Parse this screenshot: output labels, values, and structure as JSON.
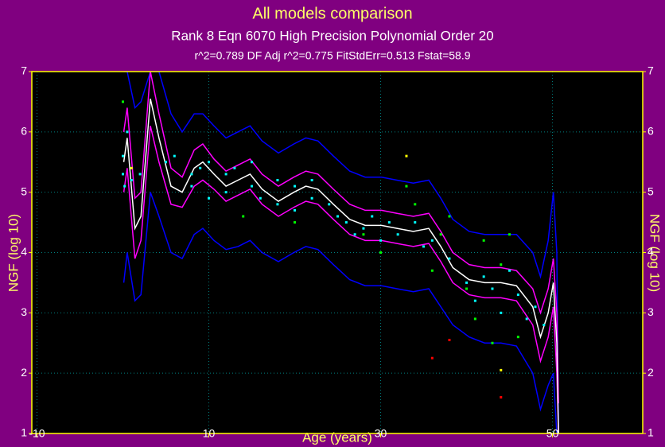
{
  "chart_data": {
    "type": "scatter",
    "title": "All models comparison",
    "subtitle": "Rank 8  Eqn 6070  High Precision Polynomial Order 20",
    "stats": "r^2=0.789  DF Adj r^2=0.775  FitStdErr=0.513  Fstat=58.9",
    "x_label": "Age (years)",
    "y_label": "NGF (log 10)",
    "xlim": [
      -10.6,
      60.5
    ],
    "xticks": [
      -10,
      10,
      30,
      50
    ],
    "ylim": [
      1,
      7
    ],
    "yticks": [
      1,
      2,
      3,
      4,
      5,
      6,
      7
    ],
    "grid": true,
    "series": [
      {
        "style": "line",
        "color": "#0000ff",
        "x": [
          0.1,
          0.5,
          1.4,
          2.1,
          3.2,
          4.2,
          5.6,
          6.9,
          8.3,
          9.3,
          10.6,
          12,
          13.4,
          14.8,
          16.2,
          18.1,
          19.9,
          21.3,
          22.7,
          24.5,
          26.4,
          28.2,
          30.1,
          31.9,
          33.8,
          35.6,
          37,
          38.4,
          40.3,
          42.1,
          44,
          45.8,
          47.7,
          48.6,
          49.5,
          50.1,
          50.5,
          50.7
        ],
        "values": [
          7.0,
          7.0,
          6.4,
          6.5,
          7.0,
          7.0,
          6.3,
          6.0,
          6.3,
          6.3,
          6.1,
          5.9,
          6.0,
          6.1,
          5.85,
          5.65,
          5.8,
          5.9,
          5.85,
          5.6,
          5.35,
          5.25,
          5.25,
          5.2,
          5.15,
          5.2,
          4.9,
          4.55,
          4.35,
          4.3,
          4.3,
          4.3,
          4.0,
          3.6,
          4.2,
          5.0,
          4.0,
          1.0
        ]
      },
      {
        "style": "line",
        "color": "#0000ff",
        "x": [
          0.1,
          0.5,
          1.4,
          2.1,
          3.2,
          4.2,
          5.6,
          6.9,
          8.3,
          9.3,
          10.6,
          12,
          13.4,
          14.8,
          16.2,
          18.1,
          19.9,
          21.3,
          22.7,
          24.5,
          26.4,
          28.2,
          30.1,
          31.9,
          33.8,
          35.6,
          37,
          38.4,
          40.3,
          42.1,
          44,
          45.8,
          47.7,
          48.6,
          49.5,
          50.1,
          50.5,
          50.7
        ],
        "values": [
          3.5,
          4.0,
          3.2,
          3.3,
          5.0,
          4.6,
          4.0,
          3.9,
          4.3,
          4.4,
          4.2,
          4.05,
          4.1,
          4.2,
          4.0,
          3.85,
          4.0,
          4.1,
          4.05,
          3.8,
          3.55,
          3.45,
          3.45,
          3.4,
          3.35,
          3.4,
          3.1,
          2.8,
          2.6,
          2.5,
          2.5,
          2.45,
          2.0,
          1.4,
          1.8,
          2.0,
          1.0,
          1.0
        ]
      },
      {
        "style": "line",
        "color": "#ff00ff",
        "x": [
          0.1,
          0.5,
          1.4,
          2.1,
          3.2,
          4.2,
          5.6,
          6.9,
          8.3,
          9.3,
          10.6,
          12,
          13.4,
          14.8,
          16.2,
          18.1,
          19.9,
          21.3,
          22.7,
          24.5,
          26.4,
          28.2,
          30.1,
          31.9,
          33.8,
          35.6,
          37,
          38.4,
          40.3,
          42.1,
          44,
          45.8,
          47.7,
          48.6,
          49.5,
          50.1,
          50.5,
          50.7
        ],
        "values": [
          6.0,
          6.4,
          4.9,
          5.0,
          7.0,
          6.3,
          5.4,
          5.25,
          5.7,
          5.8,
          5.55,
          5.35,
          5.45,
          5.55,
          5.3,
          5.1,
          5.25,
          5.35,
          5.3,
          5.05,
          4.8,
          4.7,
          4.7,
          4.65,
          4.6,
          4.65,
          4.35,
          4.0,
          3.8,
          3.75,
          3.75,
          3.7,
          3.4,
          3.0,
          3.4,
          3.9,
          3.0,
          1.5
        ]
      },
      {
        "style": "line",
        "color": "#ff00ff",
        "x": [
          0.1,
          0.5,
          1.4,
          2.1,
          3.2,
          4.2,
          5.6,
          6.9,
          8.3,
          9.3,
          10.6,
          12,
          13.4,
          14.8,
          16.2,
          18.1,
          19.9,
          21.3,
          22.7,
          24.5,
          26.4,
          28.2,
          30.1,
          31.9,
          33.8,
          35.6,
          37,
          38.4,
          40.3,
          42.1,
          44,
          45.8,
          47.7,
          48.6,
          49.5,
          50.1,
          50.5,
          50.7
        ],
        "values": [
          5.0,
          5.4,
          3.9,
          4.2,
          6.1,
          5.5,
          4.8,
          4.75,
          5.1,
          5.2,
          5.05,
          4.85,
          4.95,
          5.05,
          4.8,
          4.6,
          4.75,
          4.85,
          4.8,
          4.55,
          4.3,
          4.2,
          4.2,
          4.15,
          4.1,
          4.15,
          3.85,
          3.5,
          3.3,
          3.25,
          3.25,
          3.2,
          2.8,
          2.2,
          2.6,
          3.1,
          2.0,
          1.0
        ]
      },
      {
        "style": "line",
        "color": "#ffffff",
        "x": [
          0.1,
          0.5,
          1.4,
          2.1,
          3.2,
          4.2,
          5.6,
          6.9,
          8.3,
          9.3,
          10.6,
          12,
          13.4,
          14.8,
          16.2,
          18.1,
          19.9,
          21.3,
          22.7,
          24.5,
          26.4,
          28.2,
          30.1,
          31.9,
          33.8,
          35.6,
          37,
          38.4,
          40.3,
          42.1,
          44,
          45.8,
          47.7,
          48.6,
          49.5,
          50.1,
          50.5,
          50.7
        ],
        "values": [
          5.5,
          5.9,
          4.4,
          4.6,
          6.55,
          5.9,
          5.1,
          5.0,
          5.4,
          5.5,
          5.3,
          5.1,
          5.2,
          5.3,
          5.05,
          4.85,
          5.0,
          5.1,
          5.05,
          4.8,
          4.55,
          4.45,
          4.45,
          4.4,
          4.35,
          4.4,
          4.1,
          3.75,
          3.55,
          3.5,
          3.5,
          3.45,
          3.1,
          2.6,
          3.0,
          3.5,
          2.5,
          1.0
        ]
      },
      {
        "style": "points",
        "color": "#00ffff",
        "x": [
          0,
          0,
          0.2,
          0.5,
          1,
          2,
          5,
          6,
          8,
          8,
          9,
          10,
          10,
          12,
          12,
          13,
          15,
          15,
          16,
          18,
          18,
          20,
          20,
          22,
          22,
          24,
          25,
          26,
          27,
          28,
          29,
          30,
          31,
          32,
          34,
          35,
          36,
          38,
          40,
          41,
          42,
          43,
          44,
          45,
          46,
          47,
          48,
          49
        ],
        "values": [
          5.3,
          5.6,
          5.1,
          6.0,
          5.2,
          5.3,
          5.5,
          5.6,
          5.3,
          5.1,
          5.4,
          4.9,
          5.5,
          5.3,
          5.0,
          5.4,
          5.1,
          5.5,
          4.9,
          5.2,
          4.8,
          5.1,
          4.7,
          5.2,
          4.9,
          4.8,
          4.6,
          4.5,
          4.3,
          4.4,
          4.6,
          4.2,
          4.5,
          4.3,
          4.5,
          4.1,
          4.2,
          3.9,
          3.5,
          3.2,
          3.6,
          3.4,
          3.0,
          3.7,
          3.3,
          2.9,
          3.1,
          2.8
        ]
      },
      {
        "style": "points",
        "color": "#00ff00",
        "x": [
          0,
          14,
          20,
          28,
          30,
          33,
          34,
          36,
          37,
          38,
          40,
          41,
          42,
          43,
          44,
          45,
          46
        ],
        "values": [
          6.5,
          4.6,
          4.5,
          4.3,
          4.0,
          5.1,
          4.8,
          3.7,
          4.3,
          4.6,
          3.4,
          2.9,
          4.2,
          2.5,
          3.8,
          4.3,
          2.6
        ]
      },
      {
        "style": "points",
        "color": "#ffff00",
        "x": [
          1,
          33,
          44
        ],
        "values": [
          5.4,
          5.6,
          2.05
        ]
      },
      {
        "style": "points",
        "color": "#ff0000",
        "x": [
          36,
          38,
          44
        ],
        "values": [
          2.25,
          2.55,
          1.6
        ]
      }
    ]
  }
}
